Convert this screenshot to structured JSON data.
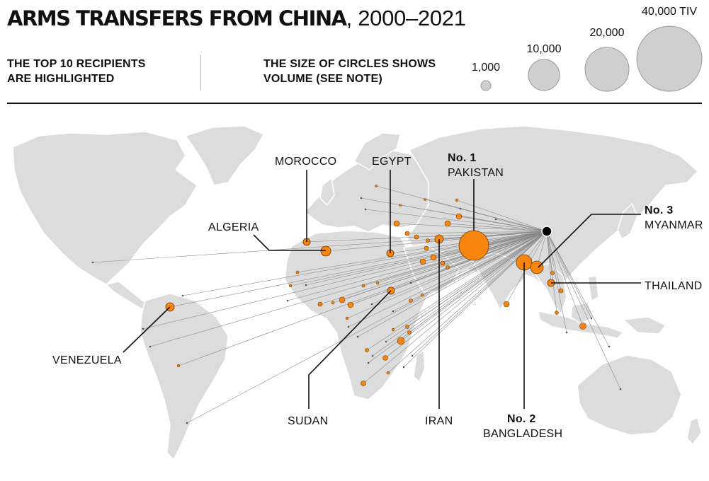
{
  "title": {
    "bold": "ARMS TRANSFERS FROM CHINA",
    "rest": ", 2000–2021"
  },
  "subtitle_left": [
    "THE TOP 10 RECIPIENTS",
    "ARE HIGHLIGHTED"
  ],
  "subtitle_mid": [
    "THE SIZE OF CIRCLES SHOWS",
    "VOLUME (SEE NOTE)"
  ],
  "legend": [
    {
      "label": "1,000"
    },
    {
      "label": "10,000"
    },
    {
      "label": "20,000"
    },
    {
      "label": "40,000 TIV"
    }
  ],
  "colors": {
    "highlight": "#f7850f",
    "land": "#dcdcdc",
    "line": "#8a8a8a",
    "origin": "#000000"
  },
  "top_recipients": [
    {
      "name": "PAKISTAN",
      "rank": "No. 1"
    },
    {
      "name": "BANGLADESH",
      "rank": "No. 2"
    },
    {
      "name": "MYANMAR",
      "rank": "No. 3"
    },
    {
      "name": "MOROCCO",
      "rank": ""
    },
    {
      "name": "EGYPT",
      "rank": ""
    },
    {
      "name": "ALGERIA",
      "rank": ""
    },
    {
      "name": "VENEZUELA",
      "rank": ""
    },
    {
      "name": "SUDAN",
      "rank": ""
    },
    {
      "name": "IRAN",
      "rank": ""
    },
    {
      "name": "THAILAND",
      "rank": ""
    }
  ]
}
